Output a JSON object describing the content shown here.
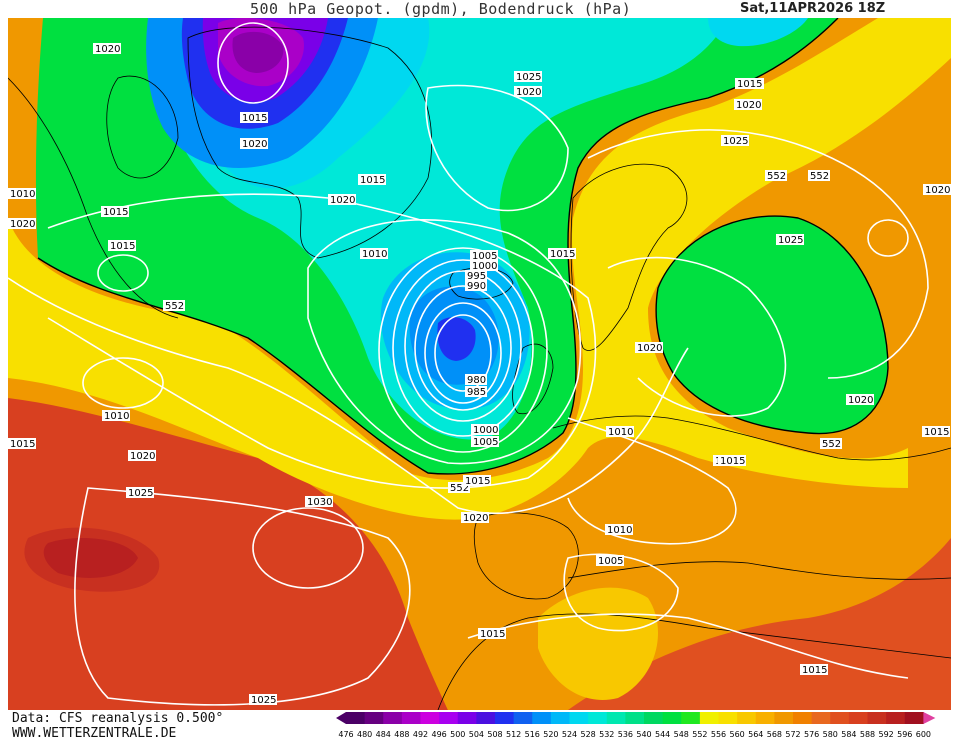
{
  "header": {
    "title": "500 hPa Geopot. (gpdm), Bodendruck (hPa)",
    "valid_time": "Sat,11APR2026 18Z"
  },
  "footer": {
    "data_source": "Data: CFS reanalysis 0.500°",
    "website": "WWW.WETTERZENTRALE.DE"
  },
  "legend": {
    "values": [
      "476",
      "480",
      "484",
      "488",
      "492",
      "496",
      "500",
      "504",
      "508",
      "512",
      "516",
      "520",
      "524",
      "528",
      "532",
      "536",
      "540",
      "544",
      "548",
      "552",
      "556",
      "560",
      "564",
      "568",
      "572",
      "576",
      "580",
      "584",
      "588",
      "592",
      "596",
      "600"
    ],
    "colors": [
      "#4b0066",
      "#660080",
      "#8a00a8",
      "#aa00c8",
      "#cc00e0",
      "#a800f0",
      "#7a00e8",
      "#4a10e0",
      "#2030f0",
      "#1060f0",
      "#0090f8",
      "#00b8f8",
      "#00d8f0",
      "#00e8d8",
      "#00e8b0",
      "#00e088",
      "#00d860",
      "#00e040",
      "#20e820",
      "#f0f000",
      "#f8e000",
      "#f8c800",
      "#f8b000",
      "#f09800",
      "#f08000",
      "#e86820",
      "#e05020",
      "#d84020",
      "#c83020",
      "#b82020",
      "#a01020",
      "#e040a0"
    ]
  },
  "map": {
    "geopotential_labels": [
      "552",
      "552",
      "552",
      "552"
    ],
    "pressure_labels": [
      "1020",
      "1015",
      "1020",
      "1015",
      "1020",
      "1015",
      "1015",
      "1025",
      "1020",
      "1015",
      "1020",
      "1010",
      "1005",
      "1000",
      "995",
      "990",
      "980",
      "985",
      "1000",
      "1005",
      "1015",
      "1020",
      "1030",
      "1025",
      "1020",
      "1010",
      "1015",
      "1025",
      "1015",
      "1020",
      "1025",
      "1020",
      "1020",
      "1010",
      "1015",
      "1010",
      "1005",
      "1015",
      "1015",
      "1025",
      "1015",
      "1020",
      "552",
      "1015",
      "1010",
      "1020",
      "1015"
    ]
  },
  "colors": {
    "green": "#00e040",
    "cyan": "#00e8d8",
    "blue": "#0090f8",
    "purple": "#8a00a8",
    "yellow": "#f8e000",
    "orange": "#f09800",
    "red": "#d84020",
    "darkred": "#b82020"
  }
}
